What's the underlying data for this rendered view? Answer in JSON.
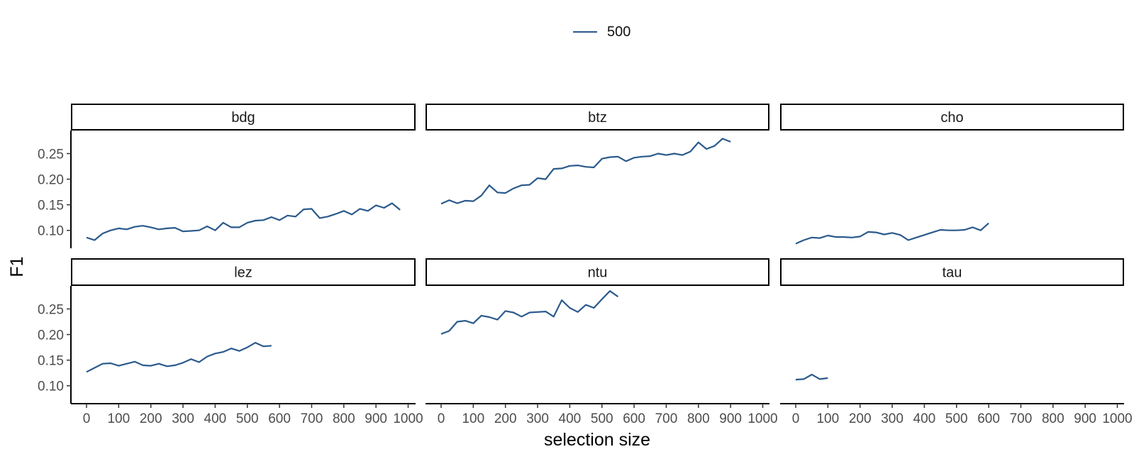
{
  "chart_data": {
    "type": "line",
    "xlabel": "selection size",
    "ylabel": "F1",
    "legend": {
      "position": "top",
      "entries": [
        "500"
      ]
    },
    "series_color": "#2b5a8c",
    "xlim": [
      0,
      1000
    ],
    "ylim": [
      0.065,
      0.295
    ],
    "xticks": [
      0,
      100,
      200,
      300,
      400,
      500,
      600,
      700,
      800,
      900,
      1000
    ],
    "yticks": [
      0.1,
      0.15,
      0.2,
      0.25
    ],
    "ytick_labels": [
      "0.10",
      "0.15",
      "0.20",
      "0.25"
    ],
    "grid": false,
    "panels": [
      {
        "name": "bdg",
        "series": [
          {
            "name": "500",
            "x": [
              0,
              25,
              50,
              75,
              100,
              125,
              150,
              175,
              200,
              225,
              250,
              275,
              300,
              325,
              350,
              375,
              400,
              425,
              450,
              475,
              500,
              525,
              550,
              575,
              600,
              625,
              650,
              675,
              700,
              725,
              750,
              775,
              800,
              825,
              850,
              875,
              900,
              925,
              950,
              975
            ],
            "y": [
              0.086,
              0.081,
              0.094,
              0.1,
              0.104,
              0.102,
              0.107,
              0.109,
              0.106,
              0.102,
              0.104,
              0.105,
              0.098,
              0.099,
              0.1,
              0.108,
              0.1,
              0.115,
              0.106,
              0.106,
              0.115,
              0.119,
              0.12,
              0.126,
              0.12,
              0.129,
              0.127,
              0.141,
              0.142,
              0.124,
              0.127,
              0.132,
              0.138,
              0.131,
              0.142,
              0.138,
              0.149,
              0.144,
              0.153,
              0.14
            ]
          }
        ]
      },
      {
        "name": "btz",
        "series": [
          {
            "name": "500",
            "x": [
              0,
              25,
              50,
              75,
              100,
              125,
              150,
              175,
              200,
              225,
              250,
              275,
              300,
              325,
              350,
              375,
              400,
              425,
              450,
              475,
              500,
              525,
              550,
              575,
              600,
              625,
              650,
              675,
              700,
              725,
              750,
              775,
              800,
              825,
              850,
              875,
              900
            ],
            "y": [
              0.152,
              0.159,
              0.153,
              0.158,
              0.157,
              0.168,
              0.188,
              0.174,
              0.173,
              0.182,
              0.188,
              0.189,
              0.202,
              0.2,
              0.22,
              0.221,
              0.226,
              0.227,
              0.224,
              0.223,
              0.24,
              0.243,
              0.244,
              0.235,
              0.242,
              0.244,
              0.245,
              0.25,
              0.247,
              0.25,
              0.247,
              0.254,
              0.272,
              0.259,
              0.265,
              0.279,
              0.273
            ]
          }
        ]
      },
      {
        "name": "cho",
        "series": [
          {
            "name": "500",
            "x": [
              0,
              25,
              50,
              75,
              100,
              125,
              150,
              175,
              200,
              225,
              250,
              275,
              300,
              325,
              350,
              375,
              400,
              425,
              450,
              475,
              500,
              525,
              550,
              575,
              600
            ],
            "y": [
              0.074,
              0.081,
              0.086,
              0.085,
              0.09,
              0.087,
              0.087,
              0.086,
              0.088,
              0.097,
              0.096,
              0.092,
              0.095,
              0.091,
              0.081,
              0.086,
              0.091,
              0.096,
              0.101,
              0.1,
              0.1,
              0.101,
              0.106,
              0.1,
              0.114
            ]
          }
        ]
      },
      {
        "name": "lez",
        "series": [
          {
            "name": "500",
            "x": [
              0,
              25,
              50,
              75,
              100,
              125,
              150,
              175,
              200,
              225,
              250,
              275,
              300,
              325,
              350,
              375,
              400,
              425,
              450,
              475,
              500,
              525,
              550,
              575
            ],
            "y": [
              0.127,
              0.135,
              0.143,
              0.144,
              0.139,
              0.143,
              0.147,
              0.14,
              0.139,
              0.143,
              0.138,
              0.14,
              0.145,
              0.152,
              0.146,
              0.157,
              0.163,
              0.166,
              0.173,
              0.168,
              0.175,
              0.184,
              0.177,
              0.178
            ]
          }
        ]
      },
      {
        "name": "ntu",
        "series": [
          {
            "name": "500",
            "x": [
              0,
              25,
              50,
              75,
              100,
              125,
              150,
              175,
              200,
              225,
              250,
              275,
              300,
              325,
              350,
              375,
              400,
              425,
              450,
              475,
              500,
              525,
              550
            ],
            "y": [
              0.201,
              0.207,
              0.225,
              0.227,
              0.222,
              0.237,
              0.234,
              0.229,
              0.246,
              0.243,
              0.235,
              0.243,
              0.244,
              0.245,
              0.235,
              0.267,
              0.252,
              0.244,
              0.258,
              0.252,
              0.269,
              0.285,
              0.274
            ]
          }
        ]
      },
      {
        "name": "tau",
        "series": [
          {
            "name": "500",
            "x": [
              0,
              25,
              50,
              75,
              100
            ],
            "y": [
              0.112,
              0.113,
              0.122,
              0.113,
              0.115
            ]
          }
        ]
      }
    ]
  }
}
